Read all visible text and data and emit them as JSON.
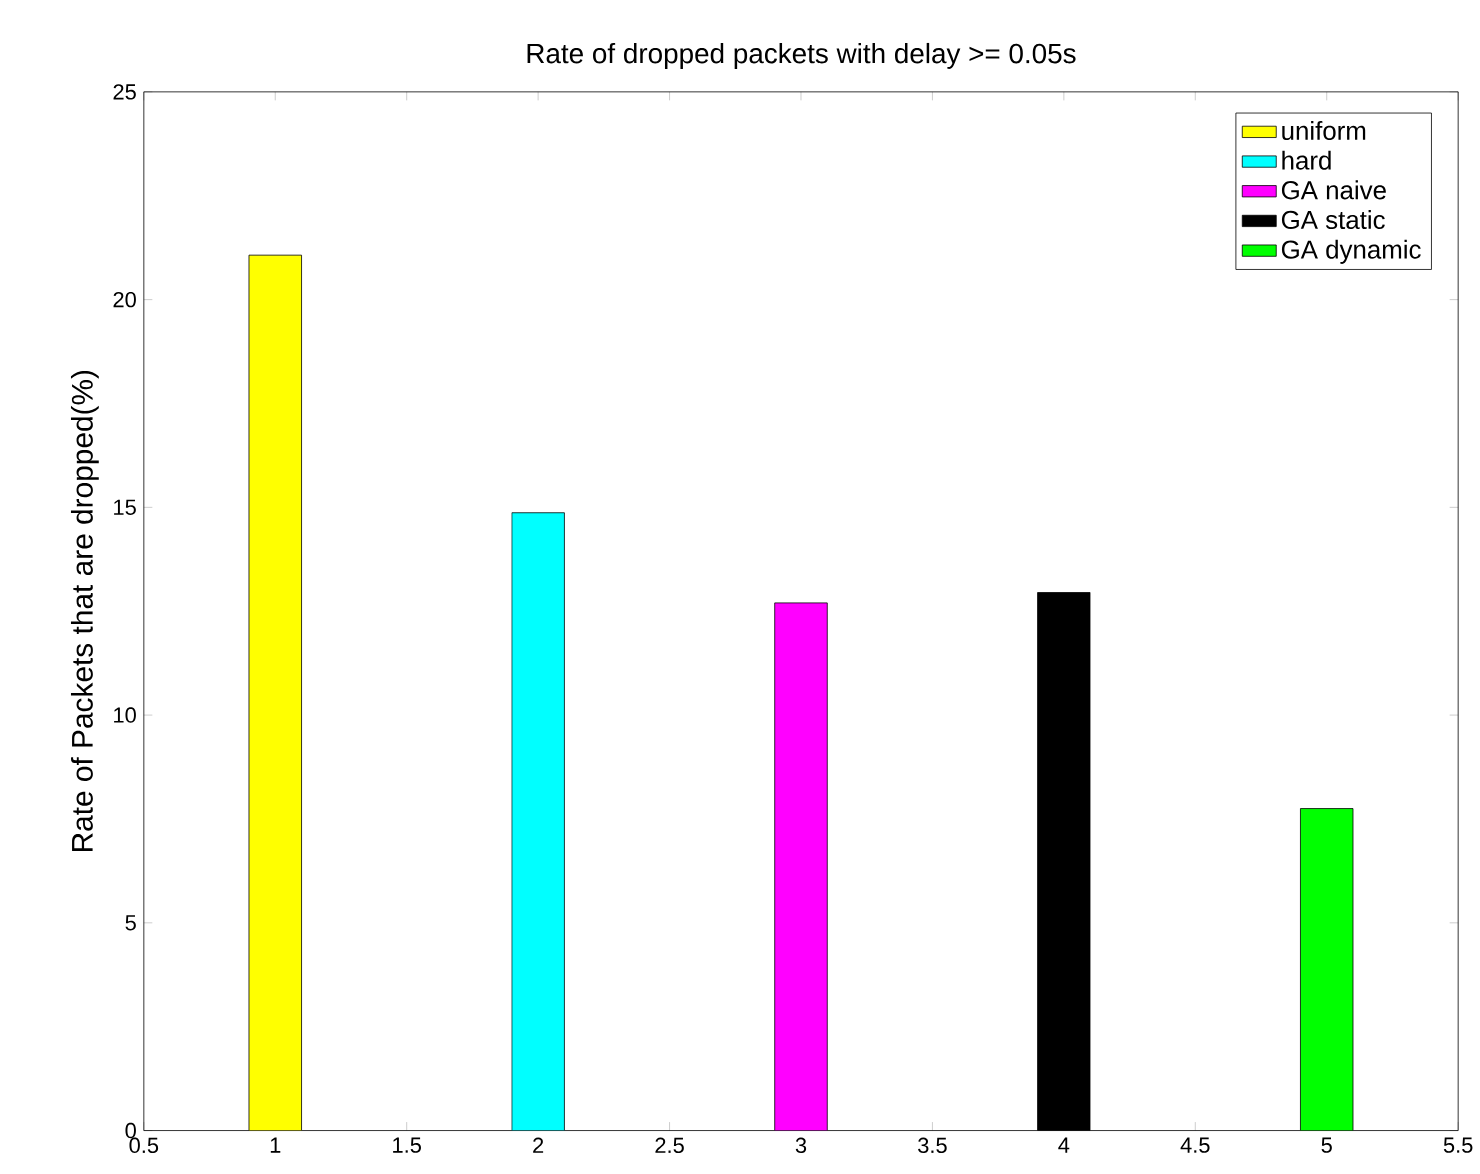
{
  "chart_data": {
    "type": "bar",
    "title": "Rate of dropped packets with delay >= 0.05s",
    "ylabel": "Rate of Packets that are dropped(%)",
    "series": [
      {
        "name": "uniform",
        "color": "#ffff00",
        "x": [
          1
        ],
        "values": [
          21.07
        ]
      },
      {
        "name": "hard",
        "color": "#00ffff",
        "x": [
          2
        ],
        "values": [
          14.87
        ]
      },
      {
        "name": "GA naive",
        "color": "#ff00ff",
        "x": [
          3
        ],
        "values": [
          12.7
        ]
      },
      {
        "name": "GA static",
        "color": "#000000",
        "x": [
          4
        ],
        "values": [
          12.95
        ]
      },
      {
        "name": "GA dynamic",
        "color": "#00ff00",
        "x": [
          5
        ],
        "values": [
          7.75
        ]
      }
    ],
    "xlim": [
      0.5,
      5.5
    ],
    "ylim": [
      0,
      25
    ],
    "xticks": [
      0.5,
      1,
      1.5,
      2,
      2.5,
      3,
      3.5,
      4,
      4.5,
      5,
      5.5
    ],
    "yticks": [
      0,
      5,
      10,
      15,
      20,
      25
    ],
    "grid": false,
    "legend": "top right"
  }
}
